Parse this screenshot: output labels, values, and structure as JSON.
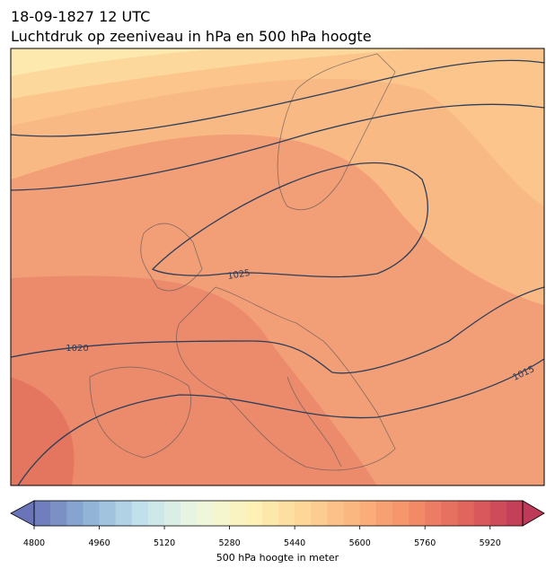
{
  "header": {
    "title": "18-09-1827 12 UTC",
    "subtitle": "Luchtdruk op zeeniveau in hPa en 500 hPa hoogte"
  },
  "map": {
    "contour_labels": [
      1025,
      1020,
      1015
    ]
  },
  "colorbar": {
    "lim": [
      4800,
      6000
    ],
    "step": 40,
    "ticks": [
      4800,
      4960,
      5120,
      5280,
      5440,
      5600,
      5760,
      5920
    ],
    "label": "500 hPa hoogte in meter",
    "colormap": [
      "#6a75b9",
      "#8fb3d6",
      "#c3e2ec",
      "#eef7e0",
      "#fdf2b8",
      "#fdd496",
      "#fbb27c",
      "#f38c68",
      "#e0625c",
      "#bf3a58"
    ]
  }
}
